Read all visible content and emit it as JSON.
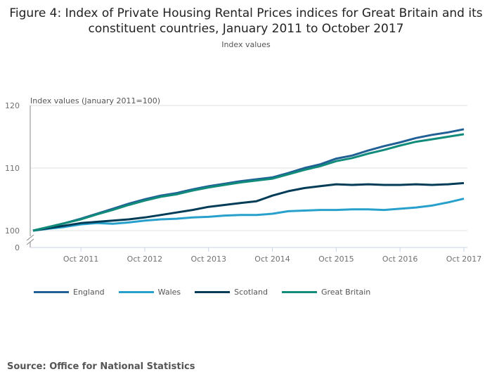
{
  "chart_data": {
    "type": "line",
    "title": "Figure 4: Index of Private Housing Rental Prices indices for Great Britain and its constituent countries, January 2011 to October 2017",
    "subtitle": "Index values",
    "ylabel": "Index values (January 2011=100)",
    "xlabel": "",
    "ylim": [
      100,
      120
    ],
    "y_axis_break": true,
    "yticks": [
      "0",
      "100",
      "110",
      "120"
    ],
    "xticks": [
      "Oct 2011",
      "Oct 2012",
      "Oct 2013",
      "Oct 2014",
      "Oct 2015",
      "Oct 2016",
      "Oct 2017"
    ],
    "grid": true,
    "legend_position": "bottom-left",
    "x": [
      "Jan 2011",
      "Apr 2011",
      "Jul 2011",
      "Oct 2011",
      "Jan 2012",
      "Apr 2012",
      "Jul 2012",
      "Oct 2012",
      "Jan 2013",
      "Apr 2013",
      "Jul 2013",
      "Oct 2013",
      "Jan 2014",
      "Apr 2014",
      "Jul 2014",
      "Oct 2014",
      "Jan 2015",
      "Apr 2015",
      "Jul 2015",
      "Oct 2015",
      "Jan 2016",
      "Apr 2016",
      "Jul 2016",
      "Oct 2016",
      "Jan 2017",
      "Apr 2017",
      "Jul 2017",
      "Oct 2017"
    ],
    "series": [
      {
        "name": "England",
        "color": "#206095",
        "values": [
          100,
          100.6,
          101.2,
          101.9,
          102.7,
          103.5,
          104.3,
          105.0,
          105.6,
          106.0,
          106.6,
          107.1,
          107.5,
          107.9,
          108.2,
          108.5,
          109.2,
          110.0,
          110.6,
          111.5,
          112.0,
          112.8,
          113.5,
          114.1,
          114.8,
          115.3,
          115.7,
          116.2
        ]
      },
      {
        "name": "Wales",
        "color": "#27a0cc",
        "values": [
          100,
          100.3,
          100.6,
          101.0,
          101.2,
          101.1,
          101.3,
          101.6,
          101.8,
          101.9,
          102.1,
          102.2,
          102.4,
          102.5,
          102.5,
          102.7,
          103.1,
          103.2,
          103.3,
          103.3,
          103.4,
          103.4,
          103.3,
          103.5,
          103.7,
          104.0,
          104.5,
          105.1
        ]
      },
      {
        "name": "Scotland",
        "color": "#003c57",
        "values": [
          100,
          100.4,
          100.8,
          101.2,
          101.4,
          101.6,
          101.8,
          102.1,
          102.5,
          102.9,
          103.3,
          103.8,
          104.1,
          104.4,
          104.7,
          105.6,
          106.3,
          106.8,
          107.1,
          107.4,
          107.3,
          107.4,
          107.3,
          107.3,
          107.4,
          107.3,
          107.4,
          107.6
        ]
      },
      {
        "name": "Great Britain",
        "color": "#118c7b",
        "values": [
          100,
          100.6,
          101.2,
          101.8,
          102.6,
          103.3,
          104.1,
          104.8,
          105.4,
          105.8,
          106.4,
          106.9,
          107.3,
          107.7,
          108.0,
          108.3,
          109.0,
          109.7,
          110.3,
          111.1,
          111.6,
          112.3,
          112.9,
          113.6,
          114.2,
          114.6,
          115.0,
          115.4
        ]
      }
    ]
  },
  "source": "Source: Office for National Statistics"
}
